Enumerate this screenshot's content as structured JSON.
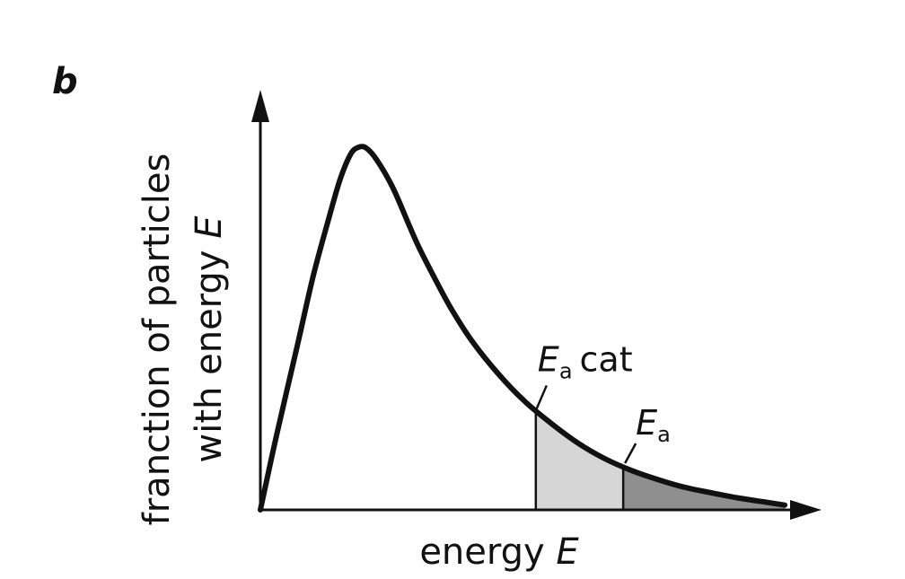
{
  "panel_label": "b",
  "chart_data": {
    "type": "line",
    "xlabel": {
      "text": "energy",
      "symbol": "E"
    },
    "ylabel": {
      "line1": "franction of particles",
      "line2_text": "with energy",
      "line2_symbol": "E"
    },
    "xlim": [
      0,
      10
    ],
    "ylim": [
      0,
      10
    ],
    "curve": {
      "x": [
        0,
        0.3,
        0.7,
        1.0,
        1.3,
        1.5,
        1.7,
        1.85,
        2.0,
        2.2,
        2.5,
        2.8,
        3.0,
        3.3,
        3.6,
        4.0,
        4.5,
        5.0,
        5.5,
        6.0,
        6.5,
        7.0,
        7.5,
        8.0,
        8.5,
        9.0,
        9.5,
        9.9
      ],
      "y": [
        0,
        2.0,
        4.5,
        6.4,
        8.0,
        9.0,
        9.7,
        9.9,
        9.88,
        9.55,
        8.8,
        7.8,
        7.15,
        6.3,
        5.5,
        4.6,
        3.7,
        2.95,
        2.35,
        1.82,
        1.4,
        1.08,
        0.83,
        0.62,
        0.47,
        0.33,
        0.22,
        0.13
      ]
    },
    "markers": [
      {
        "name": "Ea cat",
        "symbol": "E",
        "subscript": "a",
        "suffix": "cat",
        "x": 5.2,
        "shade": "#d6d6d6"
      },
      {
        "name": "Ea",
        "symbol": "E",
        "subscript": "a",
        "suffix": "",
        "x": 6.85,
        "shade": "#8f8f8f"
      }
    ],
    "grid": false,
    "legend": "none"
  }
}
